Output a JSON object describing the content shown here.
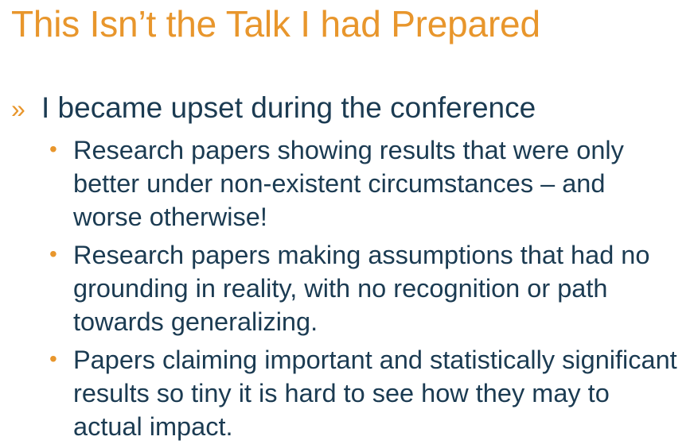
{
  "slide": {
    "title": "This Isn’t the Talk I had Prepared",
    "level1": {
      "marker": "»",
      "text": "I became upset during the conference"
    },
    "bullet_marker": "•",
    "subitems": [
      {
        "text": "Research papers showing results that were only better under non-existent circumstances – and worse otherwise!"
      },
      {
        "text": "Research papers making assumptions that had no grounding in reality, with no recognition or path towards generalizing."
      },
      {
        "text": "Papers claiming important and statistically significant results so tiny it is hard to see how they may to actual impact."
      }
    ],
    "colors": {
      "accent": "#e8962c",
      "body_text": "#1b3b52",
      "background": "#ffffff"
    }
  }
}
